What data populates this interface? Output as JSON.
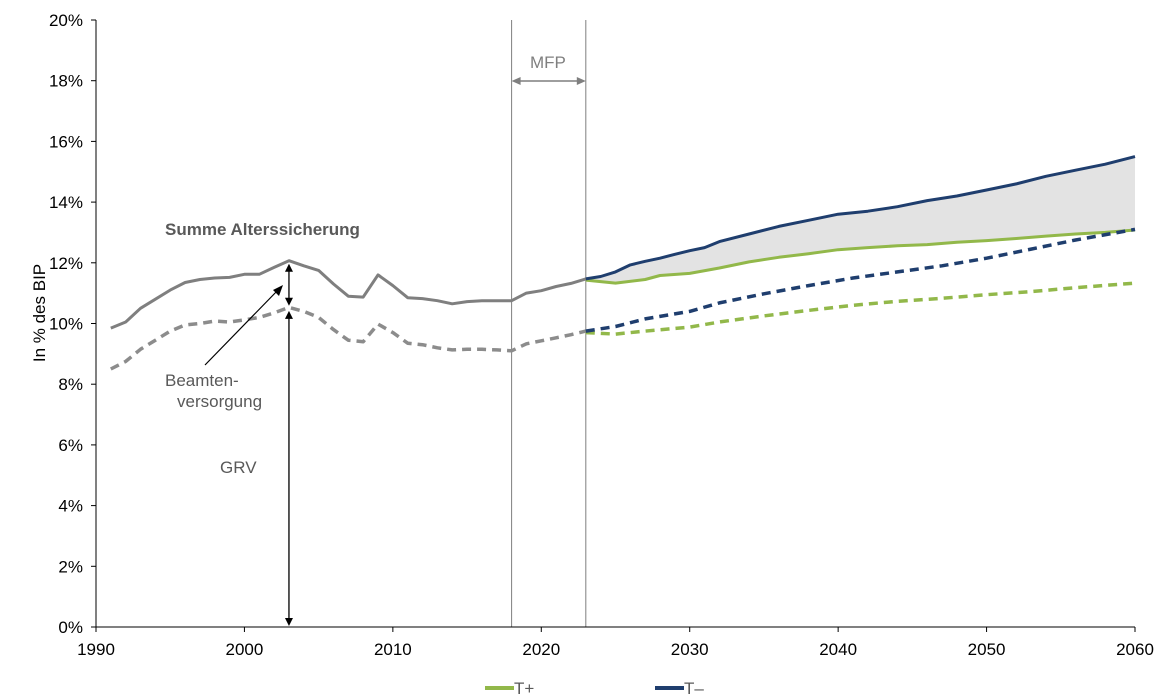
{
  "chart_data": {
    "type": "line",
    "ylabel": "In % des BIP",
    "xlim": [
      1990,
      2060
    ],
    "ylim": [
      0,
      20
    ],
    "x_ticks": [
      "1990",
      "2000",
      "2010",
      "2020",
      "2030",
      "2040",
      "2050",
      "2060"
    ],
    "y_ticks": [
      "0%",
      "2%",
      "4%",
      "6%",
      "8%",
      "10%",
      "12%",
      "14%",
      "16%",
      "18%",
      "20%"
    ],
    "grid": false,
    "legend_position": "bottom",
    "legend": [
      {
        "label": "T+",
        "color": "#92b84a"
      },
      {
        "label": "T–",
        "color": "#1f3e6e"
      }
    ],
    "annotations": {
      "summe": "Summe Alterssicherung",
      "beamten_line1": "Beamten-",
      "beamten_line2": "versorgung",
      "grv": "GRV",
      "mfp": "MFP"
    },
    "mfp_range": [
      2018,
      2023
    ],
    "colors": {
      "history_total": "#7f7f7f",
      "history_grv": "#8c8c8c",
      "t_plus": "#92b84a",
      "t_minus": "#1f3e6e",
      "band": "#e3e3e3",
      "axis": "#000000",
      "vline": "#7f7f7f"
    },
    "series": [
      {
        "key": "hist_total",
        "style": "solid",
        "points": [
          [
            1991,
            9.85
          ],
          [
            1992,
            10.05
          ],
          [
            1993,
            10.5
          ],
          [
            1994,
            10.8
          ],
          [
            1995,
            11.1
          ],
          [
            1996,
            11.35
          ],
          [
            1997,
            11.45
          ],
          [
            1998,
            11.5
          ],
          [
            1999,
            11.52
          ],
          [
            2000,
            11.62
          ],
          [
            2001,
            11.62
          ],
          [
            2002,
            11.85
          ],
          [
            2003,
            12.07
          ],
          [
            2004,
            11.9
          ],
          [
            2005,
            11.75
          ],
          [
            2006,
            11.3
          ],
          [
            2007,
            10.9
          ],
          [
            2008,
            10.87
          ],
          [
            2009,
            11.6
          ],
          [
            2010,
            11.25
          ],
          [
            2011,
            10.85
          ],
          [
            2012,
            10.82
          ],
          [
            2013,
            10.75
          ],
          [
            2014,
            10.65
          ],
          [
            2015,
            10.72
          ],
          [
            2016,
            10.75
          ],
          [
            2017,
            10.75
          ],
          [
            2018,
            10.75
          ],
          [
            2019,
            11.0
          ],
          [
            2020,
            11.08
          ],
          [
            2021,
            11.22
          ],
          [
            2022,
            11.32
          ],
          [
            2023,
            11.47
          ]
        ]
      },
      {
        "key": "hist_grv",
        "style": "dashed",
        "points": [
          [
            1991,
            8.5
          ],
          [
            1992,
            8.75
          ],
          [
            1993,
            9.15
          ],
          [
            1994,
            9.45
          ],
          [
            1995,
            9.75
          ],
          [
            1996,
            9.95
          ],
          [
            1997,
            10.0
          ],
          [
            1998,
            10.08
          ],
          [
            1999,
            10.05
          ],
          [
            2000,
            10.12
          ],
          [
            2001,
            10.2
          ],
          [
            2002,
            10.35
          ],
          [
            2003,
            10.53
          ],
          [
            2004,
            10.4
          ],
          [
            2005,
            10.2
          ],
          [
            2006,
            9.8
          ],
          [
            2007,
            9.45
          ],
          [
            2008,
            9.4
          ],
          [
            2009,
            9.98
          ],
          [
            2010,
            9.7
          ],
          [
            2011,
            9.35
          ],
          [
            2012,
            9.3
          ],
          [
            2013,
            9.2
          ],
          [
            2014,
            9.13
          ],
          [
            2015,
            9.15
          ],
          [
            2016,
            9.15
          ],
          [
            2017,
            9.13
          ],
          [
            2018,
            9.1
          ],
          [
            2019,
            9.33
          ],
          [
            2020,
            9.43
          ],
          [
            2021,
            9.53
          ],
          [
            2022,
            9.63
          ],
          [
            2023,
            9.75
          ]
        ]
      },
      {
        "key": "tplus_total",
        "name": "T+",
        "style": "solid",
        "points": [
          [
            2023,
            11.43
          ],
          [
            2025,
            11.33
          ],
          [
            2027,
            11.45
          ],
          [
            2028,
            11.58
          ],
          [
            2030,
            11.65
          ],
          [
            2032,
            11.83
          ],
          [
            2034,
            12.03
          ],
          [
            2036,
            12.18
          ],
          [
            2038,
            12.3
          ],
          [
            2040,
            12.43
          ],
          [
            2042,
            12.5
          ],
          [
            2044,
            12.56
          ],
          [
            2046,
            12.6
          ],
          [
            2048,
            12.68
          ],
          [
            2050,
            12.73
          ],
          [
            2052,
            12.8
          ],
          [
            2054,
            12.88
          ],
          [
            2056,
            12.95
          ],
          [
            2058,
            13.0
          ],
          [
            2060,
            13.08
          ]
        ]
      },
      {
        "key": "tminus_total",
        "name": "T–",
        "style": "solid",
        "points": [
          [
            2023,
            11.47
          ],
          [
            2024,
            11.55
          ],
          [
            2025,
            11.7
          ],
          [
            2026,
            11.93
          ],
          [
            2027,
            12.05
          ],
          [
            2028,
            12.15
          ],
          [
            2029,
            12.28
          ],
          [
            2030,
            12.4
          ],
          [
            2031,
            12.5
          ],
          [
            2032,
            12.7
          ],
          [
            2034,
            12.95
          ],
          [
            2036,
            13.2
          ],
          [
            2038,
            13.4
          ],
          [
            2040,
            13.6
          ],
          [
            2042,
            13.7
          ],
          [
            2044,
            13.85
          ],
          [
            2046,
            14.05
          ],
          [
            2048,
            14.2
          ],
          [
            2050,
            14.4
          ],
          [
            2052,
            14.6
          ],
          [
            2054,
            14.85
          ],
          [
            2056,
            15.05
          ],
          [
            2058,
            15.25
          ],
          [
            2060,
            15.5
          ]
        ]
      },
      {
        "key": "tplus_grv",
        "name": "T+",
        "style": "dashed",
        "points": [
          [
            2023,
            9.7
          ],
          [
            2025,
            9.65
          ],
          [
            2027,
            9.75
          ],
          [
            2030,
            9.88
          ],
          [
            2032,
            10.05
          ],
          [
            2035,
            10.25
          ],
          [
            2038,
            10.43
          ],
          [
            2041,
            10.6
          ],
          [
            2044,
            10.73
          ],
          [
            2047,
            10.83
          ],
          [
            2050,
            10.95
          ],
          [
            2053,
            11.05
          ],
          [
            2056,
            11.18
          ],
          [
            2060,
            11.33
          ]
        ]
      },
      {
        "key": "tminus_grv",
        "name": "T–",
        "style": "dashed",
        "points": [
          [
            2023,
            9.75
          ],
          [
            2025,
            9.9
          ],
          [
            2027,
            10.15
          ],
          [
            2030,
            10.4
          ],
          [
            2032,
            10.68
          ],
          [
            2035,
            10.98
          ],
          [
            2038,
            11.25
          ],
          [
            2041,
            11.5
          ],
          [
            2044,
            11.7
          ],
          [
            2047,
            11.9
          ],
          [
            2050,
            12.15
          ],
          [
            2053,
            12.45
          ],
          [
            2056,
            12.75
          ],
          [
            2060,
            13.1
          ]
        ]
      }
    ]
  }
}
